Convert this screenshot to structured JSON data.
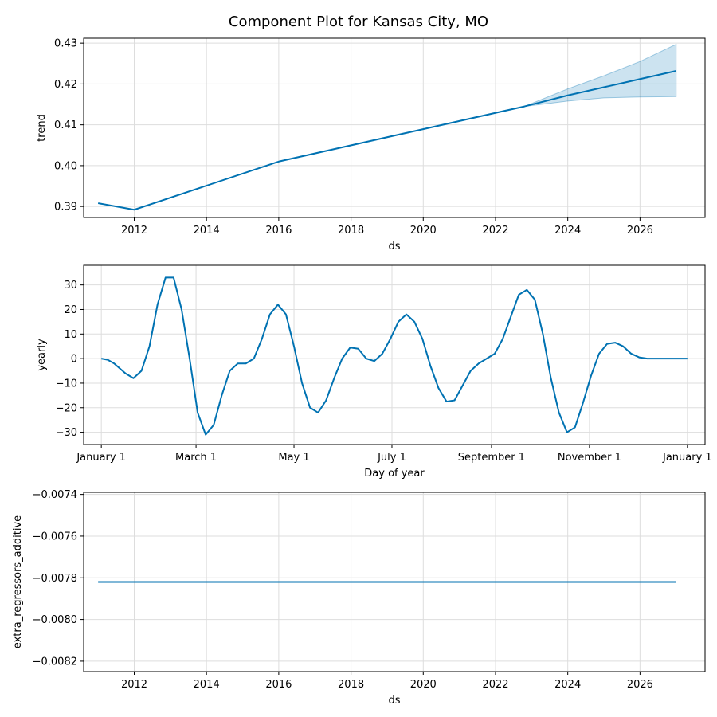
{
  "figure": {
    "title": "Component Plot for Kansas City, MO"
  },
  "colors": {
    "line": "#0072b2",
    "band": "#0072b2",
    "grid": "#dddddd"
  },
  "chart_data": [
    {
      "type": "line",
      "name": "trend",
      "xlabel": "ds",
      "ylabel": "trend",
      "grid": true,
      "xlim": [
        2010.6,
        2027.8
      ],
      "ylim": [
        0.3873,
        0.4312
      ],
      "xticks": [
        2012,
        2014,
        2016,
        2018,
        2020,
        2022,
        2024,
        2026
      ],
      "xtick_labels": [
        "2012",
        "2014",
        "2016",
        "2018",
        "2020",
        "2022",
        "2024",
        "2026"
      ],
      "yticks": [
        0.39,
        0.4,
        0.41,
        0.42,
        0.43
      ],
      "ytick_labels": [
        "0.39",
        "0.40",
        "0.41",
        "0.42",
        "0.43"
      ],
      "series": [
        {
          "x": [
            2011,
            2012,
            2016,
            2022.8,
            2024,
            2025,
            2026,
            2027
          ],
          "y": [
            0.3908,
            0.3892,
            0.401,
            0.4145,
            0.4172,
            0.4192,
            0.4212,
            0.4232
          ]
        }
      ],
      "uncertainty_band": {
        "x": [
          2022.8,
          2024,
          2025,
          2026,
          2027
        ],
        "lower": [
          0.4145,
          0.4158,
          0.4166,
          0.4168,
          0.4169
        ],
        "upper": [
          0.4145,
          0.4188,
          0.422,
          0.4255,
          0.4297
        ]
      }
    },
    {
      "type": "line",
      "name": "yearly",
      "xlabel": "Day of year",
      "ylabel": "yearly",
      "grid": true,
      "xlim": [
        -11,
        376
      ],
      "ylim": [
        -35,
        38
      ],
      "xticks": [
        0,
        59,
        120,
        181,
        243,
        304,
        365
      ],
      "xtick_labels": [
        "January 1",
        "March 1",
        "May 1",
        "July 1",
        "September 1",
        "November 1",
        "January 1"
      ],
      "yticks": [
        -30,
        -20,
        -10,
        0,
        10,
        20,
        30
      ],
      "ytick_labels": [
        "−30",
        "−20",
        "−10",
        "0",
        "10",
        "20",
        "30"
      ],
      "series": [
        {
          "x": [
            0,
            4,
            8,
            15,
            20,
            25,
            30,
            35,
            40,
            45,
            50,
            55,
            60,
            65,
            70,
            75,
            80,
            85,
            90,
            95,
            100,
            105,
            110,
            115,
            120,
            125,
            130,
            135,
            140,
            145,
            150,
            155,
            160,
            165,
            170,
            175,
            180,
            185,
            190,
            195,
            200,
            205,
            210,
            215,
            220,
            225,
            230,
            235,
            240,
            245,
            250,
            255,
            260,
            265,
            270,
            275,
            280,
            285,
            290,
            295,
            300,
            305,
            310,
            315,
            320,
            325,
            330,
            335,
            340,
            345,
            350,
            355,
            360,
            365
          ],
          "y": [
            0,
            -0.5,
            -2,
            -6,
            -8,
            -5,
            5,
            22,
            33,
            33,
            20,
            0,
            -22,
            -31,
            -27,
            -15,
            -5,
            -2,
            -2,
            0,
            8,
            18,
            22,
            18,
            5,
            -10,
            -20,
            -22,
            -17,
            -8,
            0,
            4.5,
            4,
            0,
            -1,
            2,
            8,
            15,
            18,
            15,
            8,
            -3,
            -12,
            -17.5,
            -17,
            -11,
            -5,
            -2,
            0,
            2,
            8,
            17,
            26,
            28,
            24,
            10,
            -8,
            -22,
            -30,
            -28,
            -18,
            -7,
            2,
            6,
            6.5,
            5,
            2,
            0.5,
            0,
            0,
            0,
            0,
            0,
            0
          ]
        }
      ]
    },
    {
      "type": "line",
      "name": "extra_regressors_additive",
      "xlabel": "ds",
      "ylabel": "extra_regressors_additive",
      "grid": true,
      "xlim": [
        2010.6,
        2027.8
      ],
      "ylim": [
        -0.00825,
        -0.00739
      ],
      "xticks": [
        2012,
        2014,
        2016,
        2018,
        2020,
        2022,
        2024,
        2026
      ],
      "xtick_labels": [
        "2012",
        "2014",
        "2016",
        "2018",
        "2020",
        "2022",
        "2024",
        "2026"
      ],
      "yticks": [
        -0.0082,
        -0.008,
        -0.0078,
        -0.0076,
        -0.0074
      ],
      "ytick_labels": [
        "−0.0082",
        "−0.0080",
        "−0.0078",
        "−0.0076",
        "−0.0074"
      ],
      "series": [
        {
          "x": [
            2011,
            2027
          ],
          "y": [
            -0.00782,
            -0.00782
          ]
        }
      ]
    }
  ]
}
